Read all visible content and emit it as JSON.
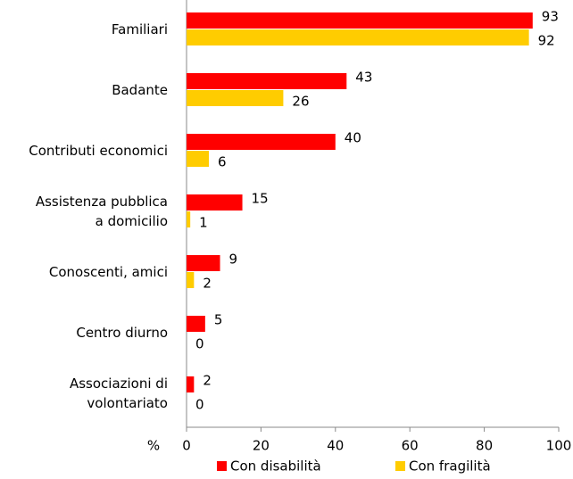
{
  "chart_data": {
    "type": "barh",
    "categories": [
      "Familiari",
      "Badante",
      "Contributi economici",
      "Assistenza pubblica\na domicilio",
      "Conoscenti, amici",
      "Centro diurno",
      "Associazioni di\nvolontariato"
    ],
    "series": [
      {
        "name": "Con disabilità",
        "color": "#ff0000",
        "values": [
          93,
          43,
          40,
          15,
          9,
          5,
          2
        ]
      },
      {
        "name": "Con fragilità",
        "color": "#ffcc00",
        "values": [
          92,
          26,
          6,
          1,
          2,
          0,
          0
        ]
      }
    ],
    "xlabel": "%",
    "xlim": [
      0,
      100
    ],
    "xticks": [
      0,
      20,
      40,
      60,
      80,
      100
    ],
    "legend": "bottom"
  }
}
